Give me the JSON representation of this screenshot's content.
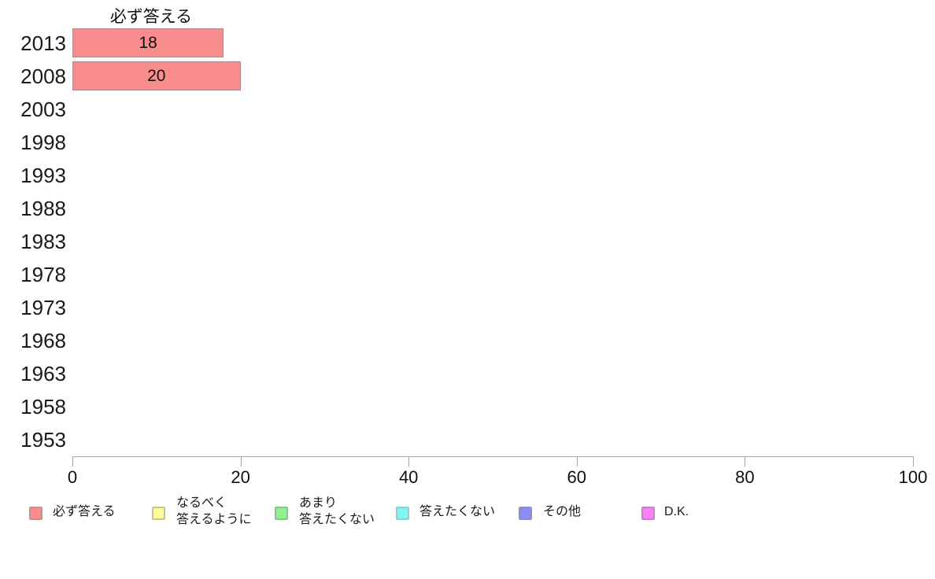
{
  "page": {
    "background": "#ffffff"
  },
  "chart_data": {
    "type": "bar",
    "orientation": "horizontal",
    "title": "必ず答える",
    "categories": [
      "2013",
      "2008",
      "2003",
      "1998",
      "1993",
      "1988",
      "1983",
      "1978",
      "1973",
      "1968",
      "1963",
      "1958",
      "1953"
    ],
    "series": [
      {
        "name": "必ず答える",
        "color": "#f98c8c",
        "border_color": "#b08a8e",
        "values": [
          18,
          20,
          null,
          null,
          null,
          null,
          null,
          null,
          null,
          null,
          null,
          null,
          null
        ]
      }
    ],
    "bar_labels_visible": true,
    "xlabel": "",
    "ylabel": "",
    "xlim": [
      0,
      100
    ],
    "xticks": [
      0,
      20,
      40,
      60,
      80,
      100
    ],
    "grid": false,
    "legend_position": "bottom",
    "legend": [
      {
        "label": "必ず答える",
        "lines": [
          "必ず答える"
        ],
        "color": "#f98c8c",
        "border_color": "#c19294"
      },
      {
        "label": "なるべく答えるように",
        "lines": [
          "なるべく",
          "答えるように"
        ],
        "color": "#fbfb98",
        "border_color": "#c6c68c"
      },
      {
        "label": "あまり答えたくない",
        "lines": [
          "あまり",
          "答えたくない"
        ],
        "color": "#8ef08e",
        "border_color": "#89c58b"
      },
      {
        "label": "答えたくない",
        "lines": [
          "答えたくない"
        ],
        "color": "#80f5f5",
        "border_color": "#97cbd1"
      },
      {
        "label": "その他",
        "lines": [
          "その他"
        ],
        "color": "#8c8cf5",
        "border_color": "#8f8fc4"
      },
      {
        "label": "D.K.",
        "lines": [
          "D.K."
        ],
        "color": "#fa80fa",
        "border_color": "#c386c3"
      }
    ]
  }
}
